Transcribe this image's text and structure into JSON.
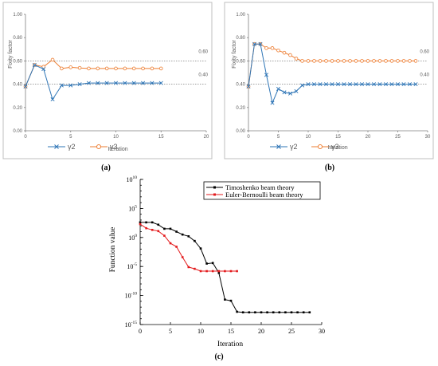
{
  "chart_data": [
    {
      "id": "a",
      "type": "line",
      "caption": "(a)",
      "xlabel": "Iteration",
      "ylabel": "Fixity factor",
      "xlim": [
        0,
        20
      ],
      "ylim": [
        0,
        1
      ],
      "xticks": [
        "0",
        "5",
        "10",
        "15",
        "20"
      ],
      "yticks": [
        "0.00",
        "0.20",
        "0.40",
        "0.60",
        "0.80",
        "1.00"
      ],
      "ref_lines": [
        {
          "y": 0.6,
          "label": "0.60"
        },
        {
          "y": 0.4,
          "label": "0.40"
        }
      ],
      "legend_position": "bottom",
      "series": [
        {
          "name": "γ2",
          "color": "#2e75b6",
          "marker": "x",
          "x": [
            0,
            1,
            2,
            3,
            4,
            5,
            6,
            7,
            8,
            9,
            10,
            11,
            12,
            13,
            14,
            15
          ],
          "y": [
            0.38,
            0.565,
            0.53,
            0.27,
            0.39,
            0.39,
            0.4,
            0.41,
            0.41,
            0.41,
            0.41,
            0.41,
            0.41,
            0.41,
            0.41,
            0.41
          ]
        },
        {
          "name": "γ3",
          "color": "#ed7d31",
          "marker": "o",
          "x": [
            0,
            1,
            2,
            3,
            4,
            5,
            6,
            7,
            8,
            9,
            10,
            11,
            12,
            13,
            14,
            15
          ],
          "y": [
            0.38,
            0.565,
            0.55,
            0.61,
            0.535,
            0.545,
            0.54,
            0.535,
            0.535,
            0.535,
            0.535,
            0.535,
            0.535,
            0.535,
            0.535,
            0.535
          ]
        }
      ]
    },
    {
      "id": "b",
      "type": "line",
      "caption": "(b)",
      "xlabel": "Iteration",
      "ylabel": "Fixity factor",
      "xlim": [
        0,
        30
      ],
      "ylim": [
        0,
        1
      ],
      "xticks": [
        "0",
        "5",
        "10",
        "15",
        "20",
        "25",
        "30"
      ],
      "yticks": [
        "0.00",
        "0.20",
        "0.40",
        "0.60",
        "0.80",
        "1.00"
      ],
      "ref_lines": [
        {
          "y": 0.6,
          "label": "0.60"
        },
        {
          "y": 0.4,
          "label": "0.40"
        }
      ],
      "legend_position": "bottom",
      "series": [
        {
          "name": "γ2",
          "color": "#2e75b6",
          "marker": "x",
          "x": [
            0,
            1,
            2,
            3,
            4,
            5,
            6,
            7,
            8,
            9,
            10,
            11,
            12,
            13,
            14,
            15,
            16,
            17,
            18,
            19,
            20,
            21,
            22,
            23,
            24,
            25,
            26,
            27,
            28
          ],
          "y": [
            0.38,
            0.745,
            0.745,
            0.48,
            0.24,
            0.36,
            0.33,
            0.32,
            0.34,
            0.39,
            0.4,
            0.4,
            0.4,
            0.4,
            0.4,
            0.4,
            0.4,
            0.4,
            0.4,
            0.4,
            0.4,
            0.4,
            0.4,
            0.4,
            0.4,
            0.4,
            0.4,
            0.4,
            0.4
          ]
        },
        {
          "name": "γ3",
          "color": "#ed7d31",
          "marker": "o",
          "x": [
            0,
            1,
            2,
            3,
            4,
            5,
            6,
            7,
            8,
            9,
            10,
            11,
            12,
            13,
            14,
            15,
            16,
            17,
            18,
            19,
            20,
            21,
            22,
            23,
            24,
            25,
            26,
            27,
            28
          ],
          "y": [
            0.38,
            0.745,
            0.745,
            0.71,
            0.71,
            0.69,
            0.67,
            0.65,
            0.62,
            0.6,
            0.6,
            0.6,
            0.6,
            0.6,
            0.6,
            0.6,
            0.6,
            0.6,
            0.6,
            0.6,
            0.6,
            0.6,
            0.6,
            0.6,
            0.6,
            0.6,
            0.6,
            0.6,
            0.6
          ]
        }
      ]
    },
    {
      "id": "c",
      "type": "line",
      "caption": "(c)",
      "xlabel": "Iteration",
      "ylabel": "Function value",
      "xlim": [
        0,
        30
      ],
      "yscale": "log",
      "ylim": [
        1e-15,
        10000000000.0
      ],
      "xticks": [
        "0",
        "5",
        "10",
        "15",
        "20",
        "25",
        "30"
      ],
      "yticks": [
        {
          "base": "10",
          "exp": "-15",
          "v": -15
        },
        {
          "base": "10",
          "exp": "-10",
          "v": -10
        },
        {
          "base": "10",
          "exp": "-5",
          "v": -5
        },
        {
          "base": "10",
          "exp": "0",
          "v": 0
        },
        {
          "base": "10",
          "exp": "5",
          "v": 5
        },
        {
          "base": "10",
          "exp": "10",
          "v": 10
        }
      ],
      "legend_position": "top-right",
      "series": [
        {
          "name": "Timoshenko beam theory",
          "color": "#000000",
          "marker": "square",
          "x": [
            0,
            1,
            2,
            3,
            4,
            5,
            6,
            7,
            8,
            9,
            10,
            11,
            12,
            13,
            14,
            15,
            16,
            17,
            18,
            19,
            20,
            21,
            22,
            23,
            24,
            25,
            26,
            27,
            28
          ],
          "log10_y": [
            2.6,
            2.6,
            2.6,
            2.2,
            1.5,
            1.5,
            1.0,
            0.5,
            0.2,
            -0.6,
            -1.9,
            -4.5,
            -4.4,
            -6.1,
            -10.7,
            -10.9,
            -12.8,
            -12.9,
            -12.9,
            -12.9,
            -12.9,
            -12.9,
            -12.9,
            -12.9,
            -12.9,
            -12.9,
            -12.9,
            -12.9,
            -12.9
          ]
        },
        {
          "name": "Euler-Bernoulli beam theory",
          "color": "#e31a1c",
          "marker": "square",
          "x": [
            0,
            1,
            2,
            3,
            4,
            5,
            6,
            7,
            8,
            9,
            10,
            11,
            12,
            13,
            14,
            15,
            16
          ],
          "log10_y": [
            2.3,
            1.6,
            1.3,
            1.1,
            0.3,
            -1.0,
            -1.6,
            -3.4,
            -5.1,
            -5.4,
            -5.8,
            -5.8,
            -5.8,
            -5.8,
            -5.8,
            -5.8,
            -5.8
          ]
        }
      ]
    }
  ]
}
